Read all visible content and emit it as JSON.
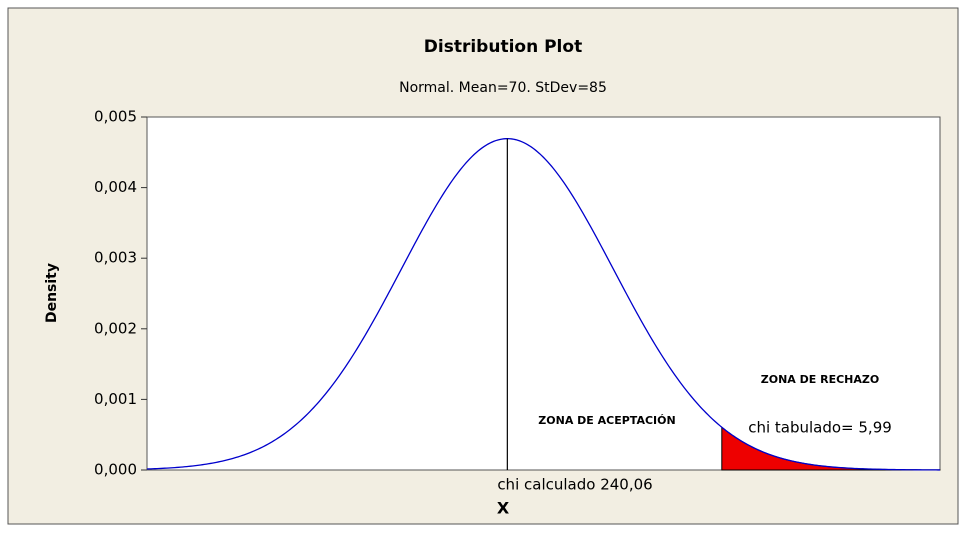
{
  "chart_data": {
    "type": "distribution",
    "title": "Distribution Plot",
    "subtitle": "Normal. Mean=70. StDev=85",
    "x_label": "X",
    "y_label": "Density",
    "mean": 70,
    "stdev": 85,
    "shade_from": 242,
    "xlim": [
      -219,
      417
    ],
    "ylim": [
      0,
      0.005
    ],
    "yticks": [
      {
        "value": 0,
        "label": "0,000"
      },
      {
        "value": 0.001,
        "label": "0,001"
      },
      {
        "value": 0.002,
        "label": "0,002"
      },
      {
        "value": 0.003,
        "label": "0,003"
      },
      {
        "value": 0.004,
        "label": "0,004"
      },
      {
        "value": 0.005,
        "label": "0,005"
      }
    ],
    "line_color": "#0000cc",
    "shade_color": "#ee0000",
    "annotations": [
      "ZONA DE RECHAZO",
      "ZONA DE ACEPTACIÓN",
      "chi tabulado= 5,99",
      "chi calculado 240,06"
    ]
  }
}
